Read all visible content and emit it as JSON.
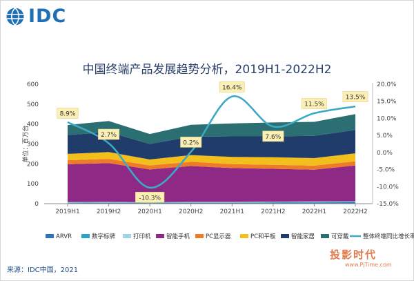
{
  "header": {
    "logo_text": "IDC"
  },
  "chart_data": {
    "type": "area",
    "title": "中国终端产品发展趋势分析，2019H1-2022H2",
    "ylabel": "单位：百万台",
    "ylim": [
      0,
      600
    ],
    "y2lim": [
      -15,
      20
    ],
    "y_ticks": [
      "0",
      "100",
      "200",
      "300",
      "400",
      "500",
      "600"
    ],
    "y2_ticks": [
      "-15.0%",
      "-10.0%",
      "-5.0%",
      "0.0%",
      "5.0%",
      "10.0%",
      "15.0%",
      "20.0%"
    ],
    "categories": [
      "2019H1",
      "2019H2",
      "2020H1",
      "2020H2",
      "2021H1",
      "2021H2",
      "2022H1",
      "2022H2"
    ],
    "series": [
      {
        "name": "ARVR",
        "color": "#2f73b8",
        "values": [
          3,
          4,
          3,
          4,
          4,
          5,
          6,
          7
        ]
      },
      {
        "name": "数字标牌",
        "color": "#29a3c6",
        "values": [
          2,
          2,
          2,
          2,
          2,
          2,
          2,
          2
        ]
      },
      {
        "name": "打印机",
        "color": "#9ed6e6",
        "values": [
          3,
          3,
          2,
          3,
          3,
          3,
          3,
          3
        ]
      },
      {
        "name": "智能手机",
        "color": "#8e2a85",
        "values": [
          190,
          195,
          165,
          180,
          170,
          165,
          160,
          180
        ]
      },
      {
        "name": "PC显示器",
        "color": "#ee7b2a",
        "values": [
          20,
          21,
          20,
          21,
          20,
          20,
          20,
          21
        ]
      },
      {
        "name": "PC和平板",
        "color": "#f3bf1d",
        "values": [
          32,
          34,
          30,
          34,
          36,
          38,
          38,
          40
        ]
      },
      {
        "name": "智能家居",
        "color": "#1f3c6a",
        "values": [
          95,
          100,
          78,
          92,
          103,
          105,
          112,
          117
        ]
      },
      {
        "name": "可穿戴",
        "color": "#2b6f73",
        "values": [
          50,
          56,
          50,
          60,
          65,
          70,
          70,
          80
        ]
      }
    ],
    "growth_series": {
      "name": "整体终端同比增长率",
      "color": "#3da9c4",
      "values": [
        8.9,
        2.7,
        -10.3,
        0.2,
        16.4,
        7.6,
        11.5,
        13.5
      ],
      "labels": [
        "8.9%",
        "2.7%",
        "-10.3%",
        "0.2%",
        "16.4%",
        "7.6%",
        "11.5%",
        "13.5%"
      ]
    },
    "legend_position": "bottom",
    "grid": false
  },
  "footer": {
    "source": "来源：IDC中国，2021"
  },
  "watermark": {
    "text": "投影时代",
    "url": "www.PjTime.com"
  }
}
